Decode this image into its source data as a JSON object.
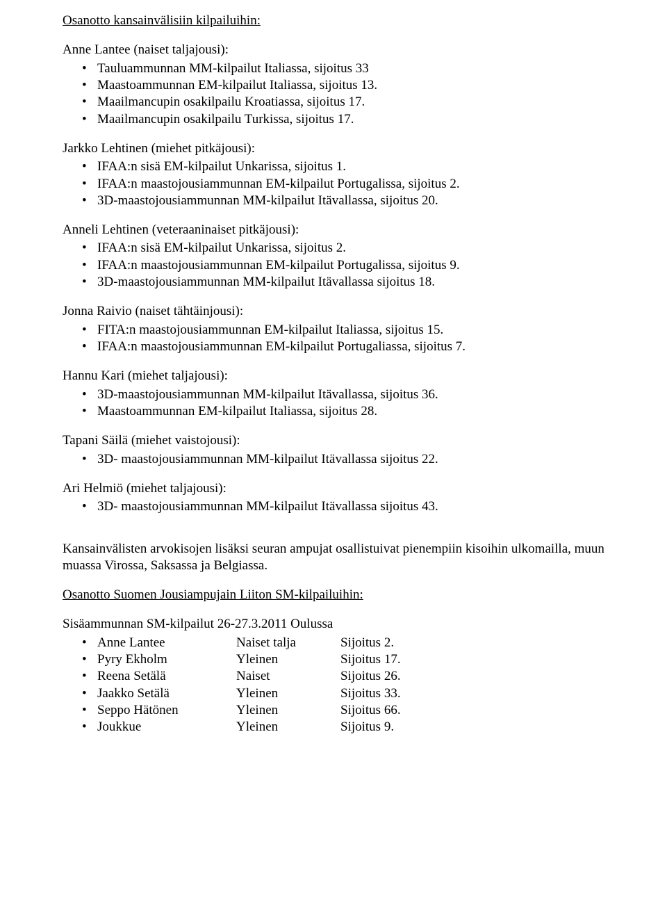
{
  "heading1": "Osanotto kansainvälisiin kilpailuihin:",
  "athletes": [
    {
      "name": "Anne Lantee (naiset taljajousi):",
      "items": [
        "Tauluammunnan MM-kilpailut Italiassa, sijoitus 33",
        "Maastoammunnan EM-kilpailut Italiassa, sijoitus 13.",
        "Maailmancupin osakilpailu Kroatiassa, sijoitus 17.",
        "Maailmancupin osakilpailu Turkissa, sijoitus 17."
      ]
    },
    {
      "name": "Jarkko Lehtinen (miehet pitkäjousi):",
      "items": [
        "IFAA:n sisä EM-kilpailut Unkarissa, sijoitus 1.",
        "IFAA:n maastojousiammunnan EM-kilpailut Portugalissa, sijoitus 2.",
        "3D-maastojousiammunnan MM-kilpailut Itävallassa, sijoitus 20."
      ]
    },
    {
      "name": "Anneli Lehtinen (veteraaninaiset pitkäjousi):",
      "items": [
        "IFAA:n sisä EM-kilpailut Unkarissa, sijoitus 2.",
        "IFAA:n maastojousiammunnan EM-kilpailut Portugalissa, sijoitus 9.",
        "3D-maastojousiammunnan MM-kilpailut Itävallassa sijoitus 18."
      ]
    },
    {
      "name": "Jonna Raivio (naiset tähtäinjousi):",
      "items": [
        "FITA:n maastojousiammunnan EM-kilpailut Italiassa, sijoitus 15.",
        "IFAA:n maastojousiammunnan EM-kilpailut Portugaliassa, sijoitus 7."
      ]
    },
    {
      "name": "Hannu Kari (miehet taljajousi):",
      "items": [
        "3D-maastojousiammunnan MM-kilpailut Itävallassa, sijoitus 36.",
        "Maastoammunnan EM-kilpailut Italiassa, sijoitus 28."
      ]
    },
    {
      "name": "Tapani Säilä (miehet vaistojousi):",
      "items": [
        "3D- maastojousiammunnan MM-kilpailut Itävallassa sijoitus 22."
      ]
    },
    {
      "name": "Ari Helmiö (miehet taljajousi):",
      "items": [
        "3D- maastojousiammunnan MM-kilpailut Itävallassa sijoitus 43."
      ]
    }
  ],
  "paragraph": "Kansainvälisten arvokisojen lisäksi seuran ampujat osallistuivat pienempiin kisoihin ulkomailla, muun muassa Virossa, Saksassa ja Belgiassa.",
  "heading2": "Osanotto Suomen Jousiampujain Liiton SM-kilpailuihin:",
  "sm_heading": "Sisäammunnan SM-kilpailut 26-27.3.2011 Oulussa",
  "sm_rows": [
    {
      "c1": "Anne Lantee",
      "c2": "Naiset talja",
      "c3": "Sijoitus 2."
    },
    {
      "c1": "Pyry Ekholm",
      "c2": "Yleinen",
      "c3": "Sijoitus 17."
    },
    {
      "c1": "Reena Setälä",
      "c2": "Naiset",
      "c3": "Sijoitus 26."
    },
    {
      "c1": "Jaakko Setälä",
      "c2": "Yleinen",
      "c3": "Sijoitus 33."
    },
    {
      "c1": "Seppo Hätönen",
      "c2": "Yleinen",
      "c3": "Sijoitus 66."
    },
    {
      "c1": "Joukkue",
      "c2": "Yleinen",
      "c3": "Sijoitus 9."
    }
  ]
}
